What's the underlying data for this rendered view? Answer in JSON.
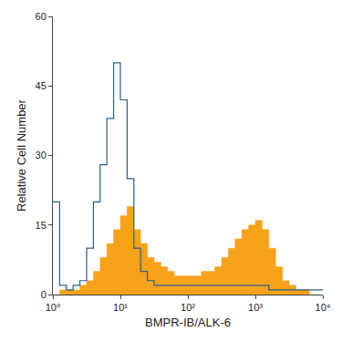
{
  "chart_data": {
    "type": "histogram",
    "x_label": "BMPR-IB/ALK-6",
    "y_label": "Relative Cell Number",
    "log": "x",
    "xlim": [
      1,
      10000
    ],
    "xticks": [
      {
        "value": 1,
        "label": "10⁰"
      },
      {
        "value": 10,
        "label": "10¹"
      },
      {
        "value": 100,
        "label": "10²"
      },
      {
        "value": 1000,
        "label": "10³"
      },
      {
        "value": 10000,
        "label": "10⁴"
      }
    ],
    "ylim": [
      0,
      60
    ],
    "yticks": [
      0,
      15,
      30,
      45,
      60
    ],
    "grid": false,
    "bins": [
      1,
      1.259,
      1.585,
      1.995,
      2.512,
      3.162,
      3.981,
      5.012,
      6.31,
      7.943,
      10,
      12.59,
      15.85,
      19.95,
      25.12,
      31.62,
      39.81,
      50.12,
      63.1,
      79.43,
      100,
      125.9,
      158.5,
      199.5,
      251.2,
      316.2,
      398.1,
      501.2,
      631,
      794.3,
      1000,
      1259,
      1585,
      1995,
      2512,
      3162,
      3981,
      5012,
      6310,
      7943,
      10000
    ],
    "series": [
      {
        "type": "area",
        "color": "#f7a21b",
        "values": [
          0,
          1,
          1,
          1,
          2,
          3,
          5,
          8,
          11,
          14,
          17,
          19,
          14,
          11,
          8,
          7,
          6,
          5,
          4,
          4,
          4,
          4,
          5,
          5,
          6,
          8,
          10,
          12,
          14,
          15,
          16,
          14,
          10,
          6,
          3,
          2,
          1,
          1,
          0,
          0
        ]
      },
      {
        "type": "line",
        "color": "#2b5f8e",
        "values": [
          20,
          2,
          1,
          2,
          3,
          10,
          20,
          28,
          38,
          50,
          42,
          25,
          10,
          5,
          3,
          2,
          2,
          2,
          2,
          2,
          2,
          2,
          2,
          2,
          2,
          2,
          2,
          2,
          2,
          2,
          2,
          2,
          1,
          1,
          1,
          1,
          1,
          1,
          1,
          1
        ]
      }
    ]
  }
}
